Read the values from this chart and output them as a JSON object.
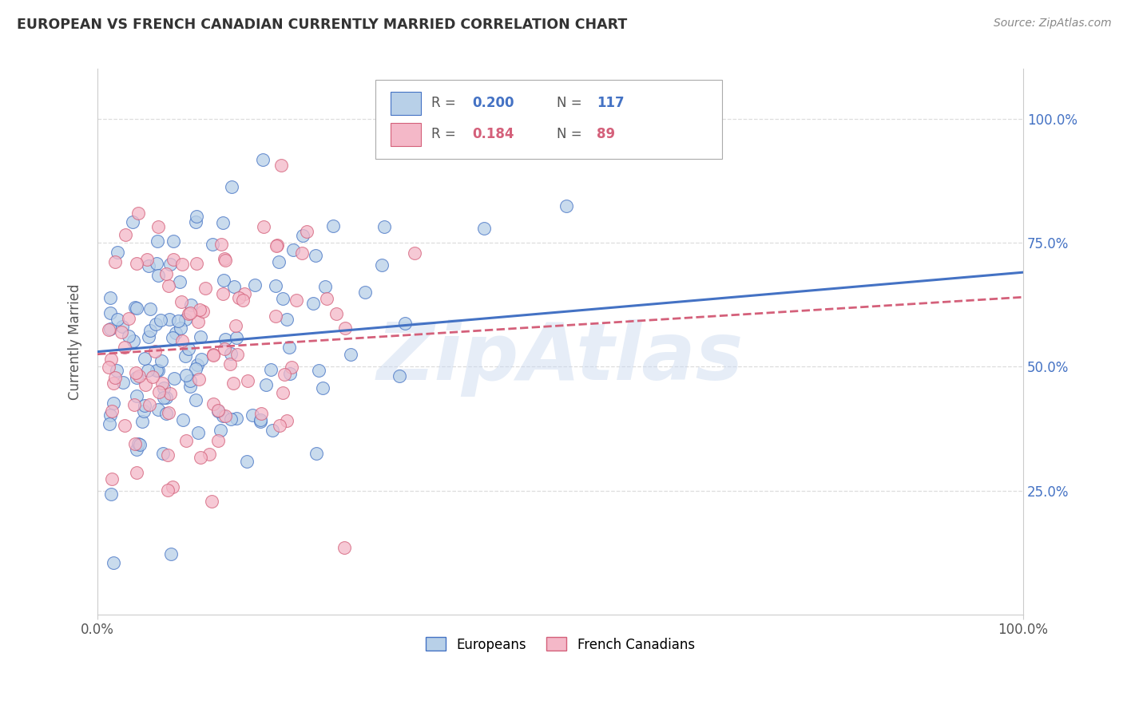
{
  "title": "EUROPEAN VS FRENCH CANADIAN CURRENTLY MARRIED CORRELATION CHART",
  "source": "Source: ZipAtlas.com",
  "ylabel": "Currently Married",
  "watermark": "ZipAtlas",
  "legend_european": "Europeans",
  "legend_french": "French Canadians",
  "R_european": 0.2,
  "N_european": 117,
  "R_french": 0.184,
  "N_french": 89,
  "blue_fill": "#b8d0e8",
  "blue_edge": "#4472c4",
  "blue_text": "#4472c4",
  "pink_fill": "#f4b8c8",
  "pink_edge": "#d4607a",
  "pink_text": "#d4607a",
  "xlim": [
    0.0,
    1.0
  ],
  "ylim": [
    0.0,
    1.1
  ],
  "ytick_values": [
    0.25,
    0.5,
    0.75,
    1.0
  ],
  "ytick_labels": [
    "25.0%",
    "50.0%",
    "75.0%",
    "100.0%"
  ],
  "background": "#ffffff",
  "grid_color": "#dddddd",
  "spine_color": "#cccccc",
  "title_color": "#333333",
  "source_color": "#888888",
  "ylabel_color": "#555555"
}
